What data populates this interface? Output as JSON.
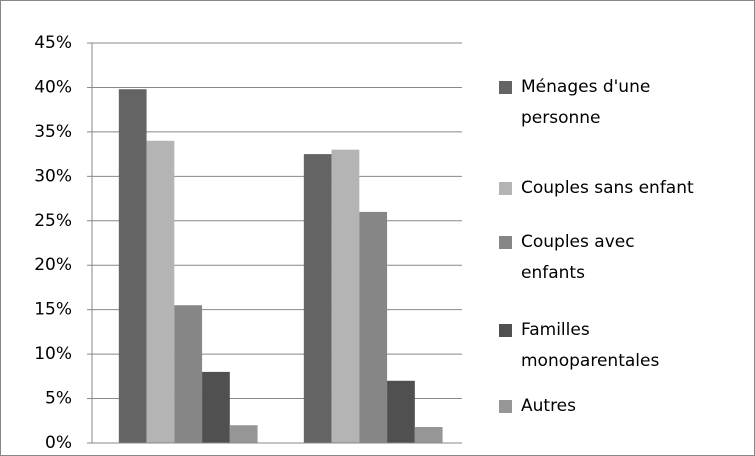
{
  "chart_data": {
    "type": "bar",
    "categories": [
      null,
      null
    ],
    "series": [
      {
        "name": "Ménages d'une personne",
        "color": "#646464",
        "values": [
          39.8,
          32.5
        ]
      },
      {
        "name": "Couples sans enfant",
        "color": "#b4b4b4",
        "values": [
          34,
          33
        ]
      },
      {
        "name": "Couples avec enfants",
        "color": "#868686",
        "values": [
          15.5,
          26
        ]
      },
      {
        "name": "Familles monoparentales",
        "color": "#505050",
        "values": [
          8,
          7
        ]
      },
      {
        "name": "Autres",
        "color": "#969696",
        "values": [
          2,
          1.8
        ]
      }
    ],
    "ylim": [
      0,
      45
    ],
    "yticks": [
      {
        "value": 0,
        "label": "0%"
      },
      {
        "value": 5,
        "label": "5%"
      },
      {
        "value": 10,
        "label": "10%"
      },
      {
        "value": 15,
        "label": "15%"
      },
      {
        "value": 20,
        "label": "20%"
      },
      {
        "value": 25,
        "label": "25%"
      },
      {
        "value": 30,
        "label": "30%"
      },
      {
        "value": 35,
        "label": "35%"
      },
      {
        "value": 40,
        "label": "40%"
      },
      {
        "value": 45,
        "label": "45%"
      }
    ],
    "grid": true,
    "legend": "right"
  }
}
